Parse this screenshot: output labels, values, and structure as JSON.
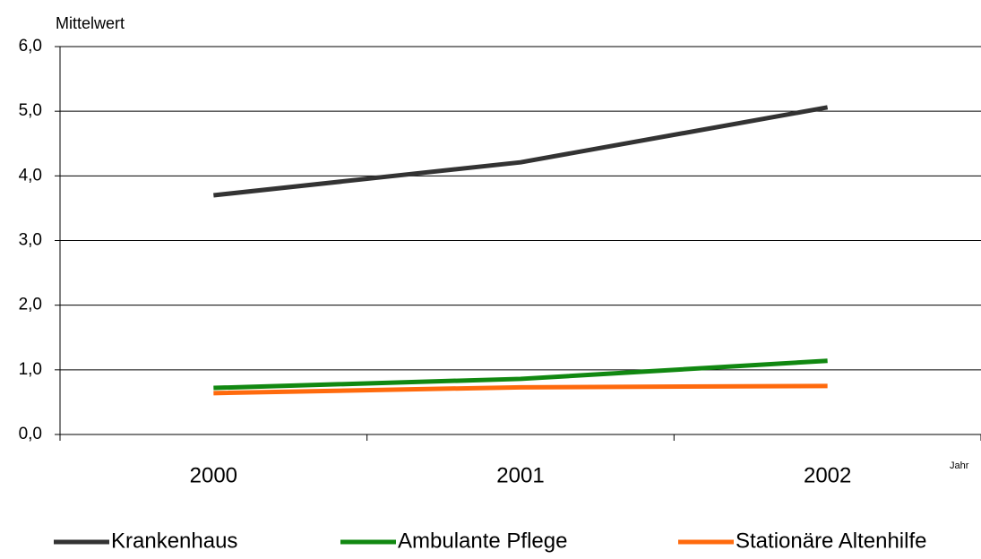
{
  "chart_data": {
    "type": "line",
    "y_axis_label": "Mittelwert",
    "x_axis_label": "Jahr",
    "categories": [
      "2000",
      "2001",
      "2002"
    ],
    "series": [
      {
        "name": "Krankenhaus",
        "color": "#333333",
        "values": [
          3.7,
          4.21,
          5.06
        ]
      },
      {
        "name": "Ambulante Pflege",
        "color": "#118811",
        "values": [
          0.72,
          0.86,
          1.14
        ]
      },
      {
        "name": "Stationäre Altenhilfe",
        "color": "#ff6a0d",
        "values": [
          0.64,
          0.73,
          0.75
        ]
      }
    ],
    "ylim": [
      0,
      6
    ],
    "yticks": [
      {
        "value": 0,
        "label": "0,0"
      },
      {
        "value": 1,
        "label": "1,0"
      },
      {
        "value": 2,
        "label": "2,0"
      },
      {
        "value": 3,
        "label": "3,0"
      },
      {
        "value": 4,
        "label": "4,0"
      },
      {
        "value": 5,
        "label": "5,0"
      },
      {
        "value": 6,
        "label": "6,0"
      }
    ],
    "grid": true,
    "legend": "bottom"
  }
}
